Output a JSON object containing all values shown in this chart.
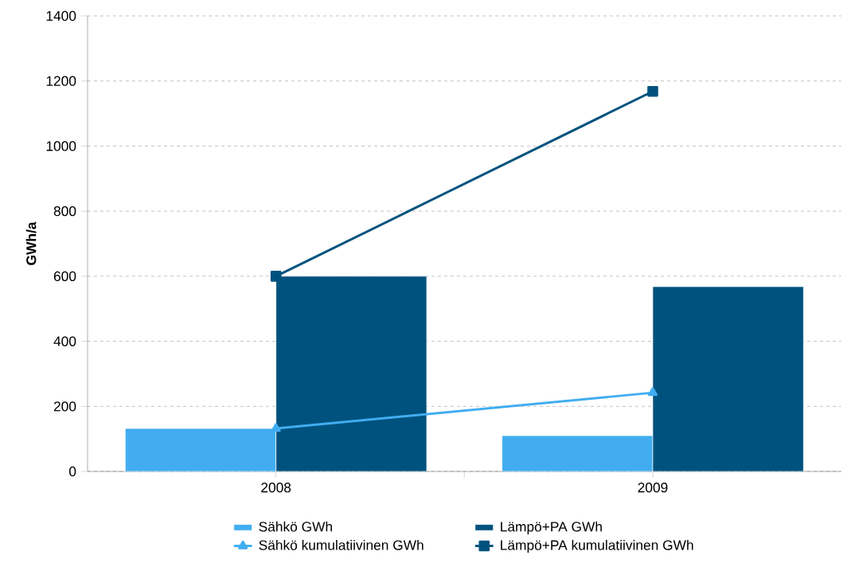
{
  "chart_data": {
    "type": "bar",
    "ylabel": "GWh/a",
    "categories": [
      "2008",
      "2009"
    ],
    "series": [
      {
        "name": "Sähkö GWh",
        "color": "#41adf0",
        "values": [
          132,
          110
        ]
      },
      {
        "name": "Lämpö+PA GWh",
        "color": "#00527e",
        "values": [
          600,
          568
        ]
      },
      {
        "name": "Sähkö kumulatiivinen GWh",
        "type": "line",
        "marker": "triangle",
        "color": "#41adf0",
        "values": [
          132,
          242
        ]
      },
      {
        "name": "Lämpö+PA kumulatiivinen GWh",
        "type": "line",
        "marker": "square",
        "color": "#00527e",
        "values": [
          600,
          1168
        ]
      }
    ],
    "ylim": [
      0,
      1400
    ],
    "yticks": [
      0,
      200,
      400,
      600,
      800,
      1000,
      1200,
      1400
    ],
    "grid": "y",
    "legend": "bottom"
  }
}
